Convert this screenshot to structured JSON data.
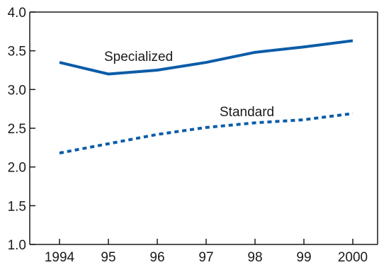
{
  "chart_data": {
    "type": "line",
    "title": "",
    "xlabel": "",
    "ylabel": "",
    "categories": [
      "1994",
      "95",
      "96",
      "97",
      "98",
      "99",
      "2000"
    ],
    "ylim": [
      1.0,
      4.0
    ],
    "yticks": [
      "1.0",
      "1.5",
      "2.0",
      "2.5",
      "3.0",
      "3.5",
      "4.0"
    ],
    "grid": false,
    "legend": "none",
    "series": [
      {
        "name": "Specialized",
        "values": [
          3.35,
          3.2,
          3.25,
          3.35,
          3.48,
          3.55,
          3.63
        ],
        "color": "#0b5ca8",
        "style": "solid"
      },
      {
        "name": "Standard",
        "values": [
          2.18,
          2.3,
          2.42,
          2.51,
          2.57,
          2.61,
          2.69
        ],
        "color": "#0b5ca8",
        "style": "dotted"
      }
    ]
  }
}
